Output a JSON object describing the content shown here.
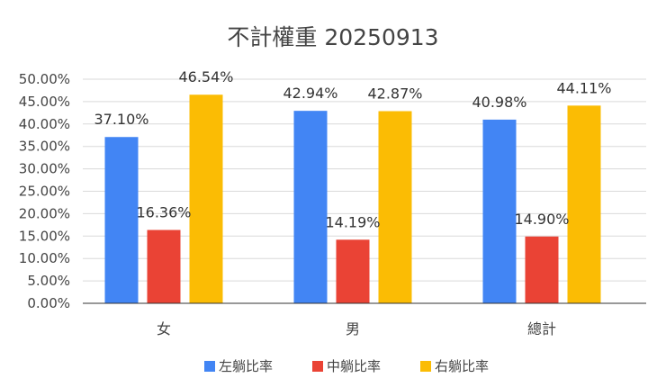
{
  "chart_data": {
    "type": "bar",
    "title": "不計權重 20250913",
    "categories": [
      "女",
      "男",
      "總計"
    ],
    "series": [
      {
        "name": "左躺比率",
        "color": "#4285f4",
        "values": [
          37.1,
          42.94,
          40.98
        ],
        "labels": [
          "37.10%",
          "42.94%",
          "40.98%"
        ]
      },
      {
        "name": "中躺比率",
        "color": "#ea4335",
        "values": [
          16.36,
          14.19,
          14.9
        ],
        "labels": [
          "16.36%",
          "14.19%",
          "14.90%"
        ]
      },
      {
        "name": "右躺比率",
        "color": "#fbbc04",
        "values": [
          46.54,
          42.87,
          44.11
        ],
        "labels": [
          "46.54%",
          "42.87%",
          "44.11%"
        ]
      }
    ],
    "ylim": [
      0,
      50
    ],
    "yticks": [
      "0.00%",
      "5.00%",
      "10.00%",
      "15.00%",
      "20.00%",
      "25.00%",
      "30.00%",
      "35.00%",
      "40.00%",
      "45.00%",
      "50.00%"
    ],
    "grid": true,
    "legend_position": "bottom",
    "xlabel": "",
    "ylabel": ""
  }
}
